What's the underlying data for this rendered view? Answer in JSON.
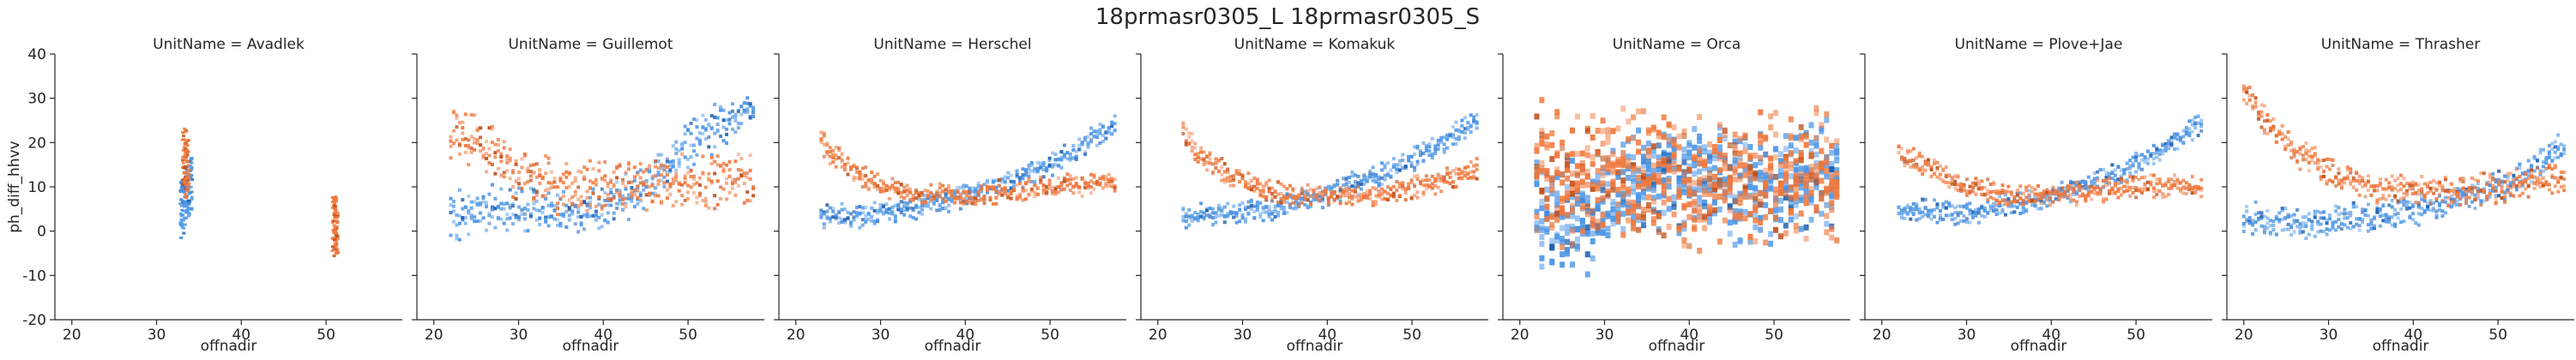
{
  "figure_title": "18prmasr0305_L 18prmasr0305_S",
  "colors": {
    "L": "#4c96e6",
    "S": "#f0783c",
    "S_dark": "#c0501a",
    "axis": "#262626"
  },
  "chart_data": {
    "type": "heatmap",
    "title": "18prmasr0305_L 18prmasr0305_S",
    "xlabel": "offnadir",
    "ylabel": "ph_diff_hhvv",
    "xlim": [
      18,
      59
    ],
    "ylim": [
      -20,
      40
    ],
    "xticks": [
      20,
      30,
      40,
      50
    ],
    "yticks": [
      -20,
      -10,
      0,
      10,
      20,
      30,
      40
    ],
    "grid": false,
    "hue_colors": [
      "#4c96e6",
      "#f0783c"
    ],
    "panels": [
      {
        "title": "UnitName = Avadlek",
        "series": [
          {
            "x": [
              33,
              33.5,
              34
            ],
            "y": [
              5,
              8,
              10
            ],
            "spread": 6,
            "clusters": true
          },
          {
            "x": [
              33.3,
              33.6,
              51,
              51.2
            ],
            "y": [
              17,
              14,
              2,
              1
            ],
            "spread": 6,
            "clusters": true
          }
        ]
      },
      {
        "title": "UnitName = Guillemot",
        "series": [
          {
            "x": [
              22,
              25,
              30,
              35,
              40,
              45,
              48,
              50,
              55,
              58
            ],
            "y": [
              3,
              5,
              5,
              4,
              5,
              10,
              15,
              20,
              25,
              27
            ],
            "spread": 6
          },
          {
            "x": [
              22,
              25,
              30,
              35,
              40,
              45,
              50,
              55,
              58
            ],
            "y": [
              22,
              20,
              13,
              10,
              10,
              11,
              11,
              12,
              12
            ],
            "spread": 7
          }
        ]
      },
      {
        "title": "UnitName = Herschel",
        "series": [
          {
            "x": [
              23,
              30,
              35,
              40,
              45,
              50,
              55,
              58
            ],
            "y": [
              3,
              4,
              6,
              8,
              11,
              15,
              21,
              24
            ],
            "spread": 3
          },
          {
            "x": [
              23,
              25,
              30,
              35,
              40,
              45,
              50,
              55,
              58
            ],
            "y": [
              20,
              16,
              10,
              8,
              8,
              9,
              10,
              11,
              11
            ],
            "spread": 3
          }
        ]
      },
      {
        "title": "UnitName = Komakuk",
        "series": [
          {
            "x": [
              23,
              30,
              35,
              40,
              45,
              50,
              55,
              58
            ],
            "y": [
              3,
              4,
              6,
              8,
              12,
              16,
              22,
              25
            ],
            "spread": 3
          },
          {
            "x": [
              23,
              25,
              30,
              35,
              40,
              45,
              50,
              55,
              58
            ],
            "y": [
              22,
              17,
              11,
              8,
              8,
              8,
              10,
              12,
              14
            ],
            "spread": 3
          }
        ]
      },
      {
        "title": "UnitName = Orca",
        "series": [
          {
            "x": [
              22,
              25,
              28,
              33,
              36,
              40,
              45,
              50,
              55,
              58
            ],
            "y": [
              5,
              3,
              3,
              10,
              12,
              12,
              10,
              10,
              12,
              14
            ],
            "spread": 14
          },
          {
            "x": [
              22,
              25,
              28,
              33,
              36,
              40,
              45,
              50,
              55,
              58
            ],
            "y": [
              15,
              12,
              12,
              14,
              12,
              10,
              12,
              12,
              13,
              12
            ],
            "spread": 16
          }
        ]
      },
      {
        "title": "UnitName = Plove+Jae",
        "series": [
          {
            "x": [
              22,
              30,
              35,
              40,
              45,
              50,
              55,
              58
            ],
            "y": [
              5,
              4,
              6,
              8,
              11,
              15,
              21,
              25
            ],
            "spread": 3
          },
          {
            "x": [
              22,
              25,
              30,
              35,
              40,
              45,
              50,
              55,
              58
            ],
            "y": [
              18,
              15,
              10,
              8,
              8,
              9,
              10,
              10,
              10
            ],
            "spread": 3
          }
        ]
      },
      {
        "title": "UnitName = Thrasher",
        "series": [
          {
            "x": [
              20,
              25,
              30,
              35,
              40,
              45,
              50,
              55,
              58
            ],
            "y": [
              3,
              2,
              2,
              3,
              5,
              7,
              10,
              15,
              20
            ],
            "spread": 4
          },
          {
            "x": [
              20,
              23,
              25,
              30,
              35,
              40,
              45,
              50,
              55,
              58
            ],
            "y": [
              32,
              24,
              20,
              13,
              10,
              9,
              9,
              10,
              12,
              12
            ],
            "spread": 4
          }
        ]
      }
    ]
  }
}
